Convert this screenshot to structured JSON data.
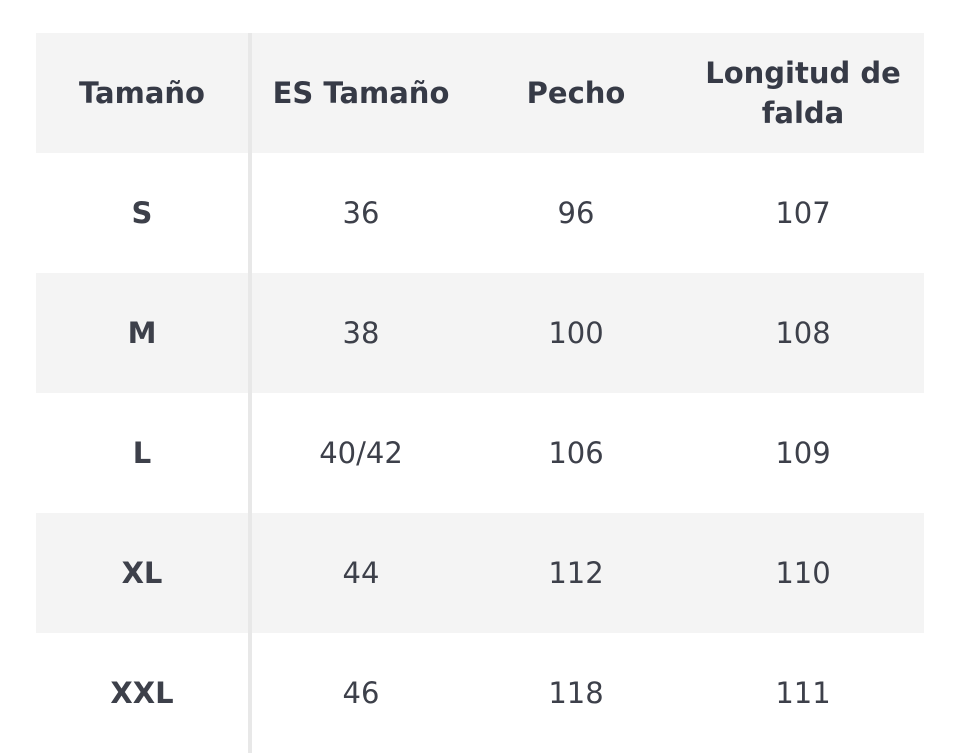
{
  "table": {
    "headers": [
      "Tamaño",
      "ES Tamaño",
      "Pecho",
      "Longitud de falda"
    ],
    "rows": [
      [
        "S",
        "36",
        "96",
        "107"
      ],
      [
        "M",
        "38",
        "100",
        "108"
      ],
      [
        "L",
        "40/42",
        "106",
        "109"
      ],
      [
        "XL",
        "44",
        "112",
        "110"
      ],
      [
        "XXL",
        "46",
        "118",
        "111"
      ]
    ]
  },
  "colors": {
    "text": "#363a46",
    "shade": "#f4f4f4",
    "divider": "#e8e8e8"
  }
}
